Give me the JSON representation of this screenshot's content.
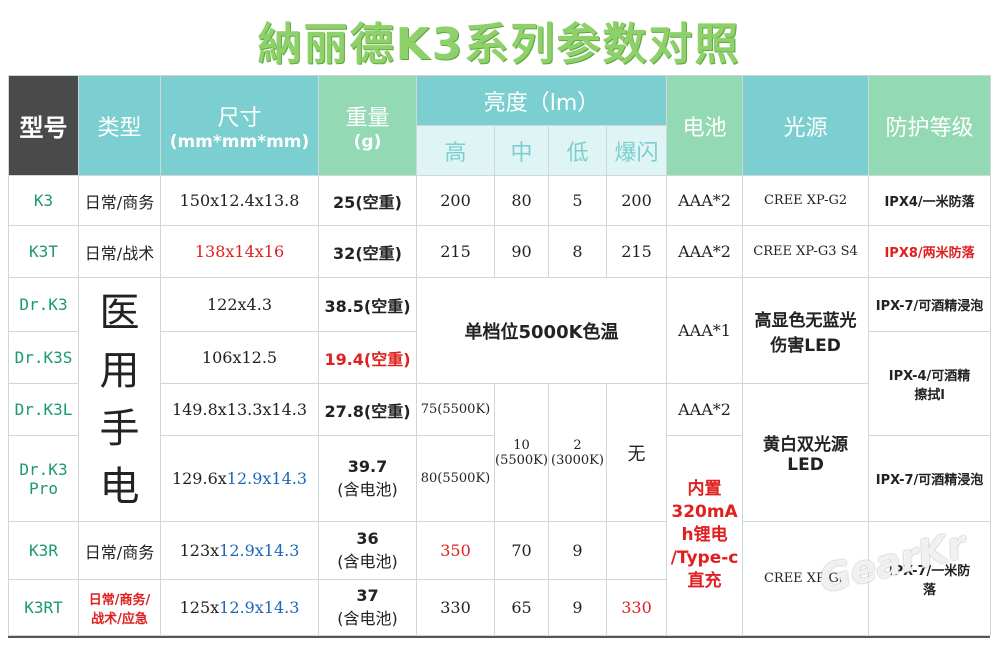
{
  "title": "納丽德K3系列参数对照",
  "headers": {
    "model": "型号",
    "type": "类型",
    "size": "尺寸",
    "size_unit": "(mm*mm*mm)",
    "weight": "重量",
    "weight_unit": "(g)",
    "brightness": "亮度（lm）",
    "high": "高",
    "mid": "中",
    "low": "低",
    "strobe": "爆闪",
    "battery": "电池",
    "light": "光源",
    "protection": "防护等级"
  },
  "rows": {
    "k3": {
      "model": "K3",
      "type": "日常/商务",
      "size": "150x12.4x13.8",
      "weight": "25(空重)",
      "high": "200",
      "mid": "80",
      "low": "5",
      "strobe": "200",
      "battery": "AAA*2",
      "light": "CREE XP-G2",
      "protection": "IPX4/一米防落"
    },
    "k3t": {
      "model": "K3T",
      "type": "日常/战术",
      "size": "138x14x16",
      "weight": "32(空重)",
      "high": "215",
      "mid": "90",
      "low": "8",
      "strobe": "215",
      "battery": "AAA*2",
      "light": "CREE XP-G3 S4",
      "protection": "IPX8/两米防落"
    },
    "drk3": {
      "model": "Dr.K3",
      "size": "122x4.3",
      "weight": "38.5(空重)",
      "protection": "IPX-7/可酒精浸泡"
    },
    "drk3s": {
      "model": "Dr.K3S",
      "size": "106x12.5",
      "weight": "19.4(空重)"
    },
    "drk3l": {
      "model": "Dr.K3L",
      "size": "149.8x13.3x14.3",
      "weight": "27.8(空重)",
      "high": "75(5500K)"
    },
    "drk3pro": {
      "model_line1": "Dr.K3",
      "model_line2": "Pro",
      "size_a": "129.6x",
      "size_b": "12.9x14.3",
      "weight_line1": "39.7",
      "weight_line2": "(含电池)",
      "high": "80(5500K)",
      "protection": "IPX-7/可酒精浸泡"
    },
    "k3r": {
      "model": "K3R",
      "type": "日常/商务",
      "size_a": "123x",
      "size_b": "12.9x14.3",
      "weight_line1": "36",
      "weight_line2": "(含电池)",
      "high": "350",
      "mid": "70",
      "low": "9"
    },
    "k3rt": {
      "model": "K3RT",
      "type_line1": "日常/商务/",
      "type_line2": "战术/应急",
      "size_a": "125x",
      "size_b": "12.9x14.3",
      "weight_line1": "37",
      "weight_line2": "(含电池)",
      "high": "330",
      "mid": "65",
      "low": "9",
      "strobe": "330"
    }
  },
  "merged": {
    "medical": [
      "医",
      "用",
      "手",
      "电"
    ],
    "single_mode": "单档位5000K色温",
    "no_strobe": "无",
    "aaa1": "AAA*1",
    "aaa2": "AAA*2",
    "builtin_battery": [
      "内置",
      "320mA",
      "h锂电",
      "/Type-c",
      "直充"
    ],
    "no_blue_light": [
      "高显色无蓝光",
      "伤害LED"
    ],
    "dual_light": [
      "黄白双光源",
      "LED"
    ],
    "ipx4_wipe": [
      "IPX-4/可酒精",
      "擦拭l"
    ],
    "mid_shared": [
      "10",
      "(5500K)"
    ],
    "low_shared": [
      "2",
      "(3000K)"
    ],
    "cree_g3": "CREE XP-G3",
    "ipx7_drop": [
      "IPX-7/一米防",
      "落"
    ]
  },
  "watermark": "GearKr",
  "colors": {
    "title_green": "#8ed16a",
    "header_teal": "#7bcfd0",
    "header_green": "#93d9b3",
    "model_green": "#1a9a6c",
    "highlight_red": "#e02020",
    "highlight_blue": "#1d67b8"
  }
}
